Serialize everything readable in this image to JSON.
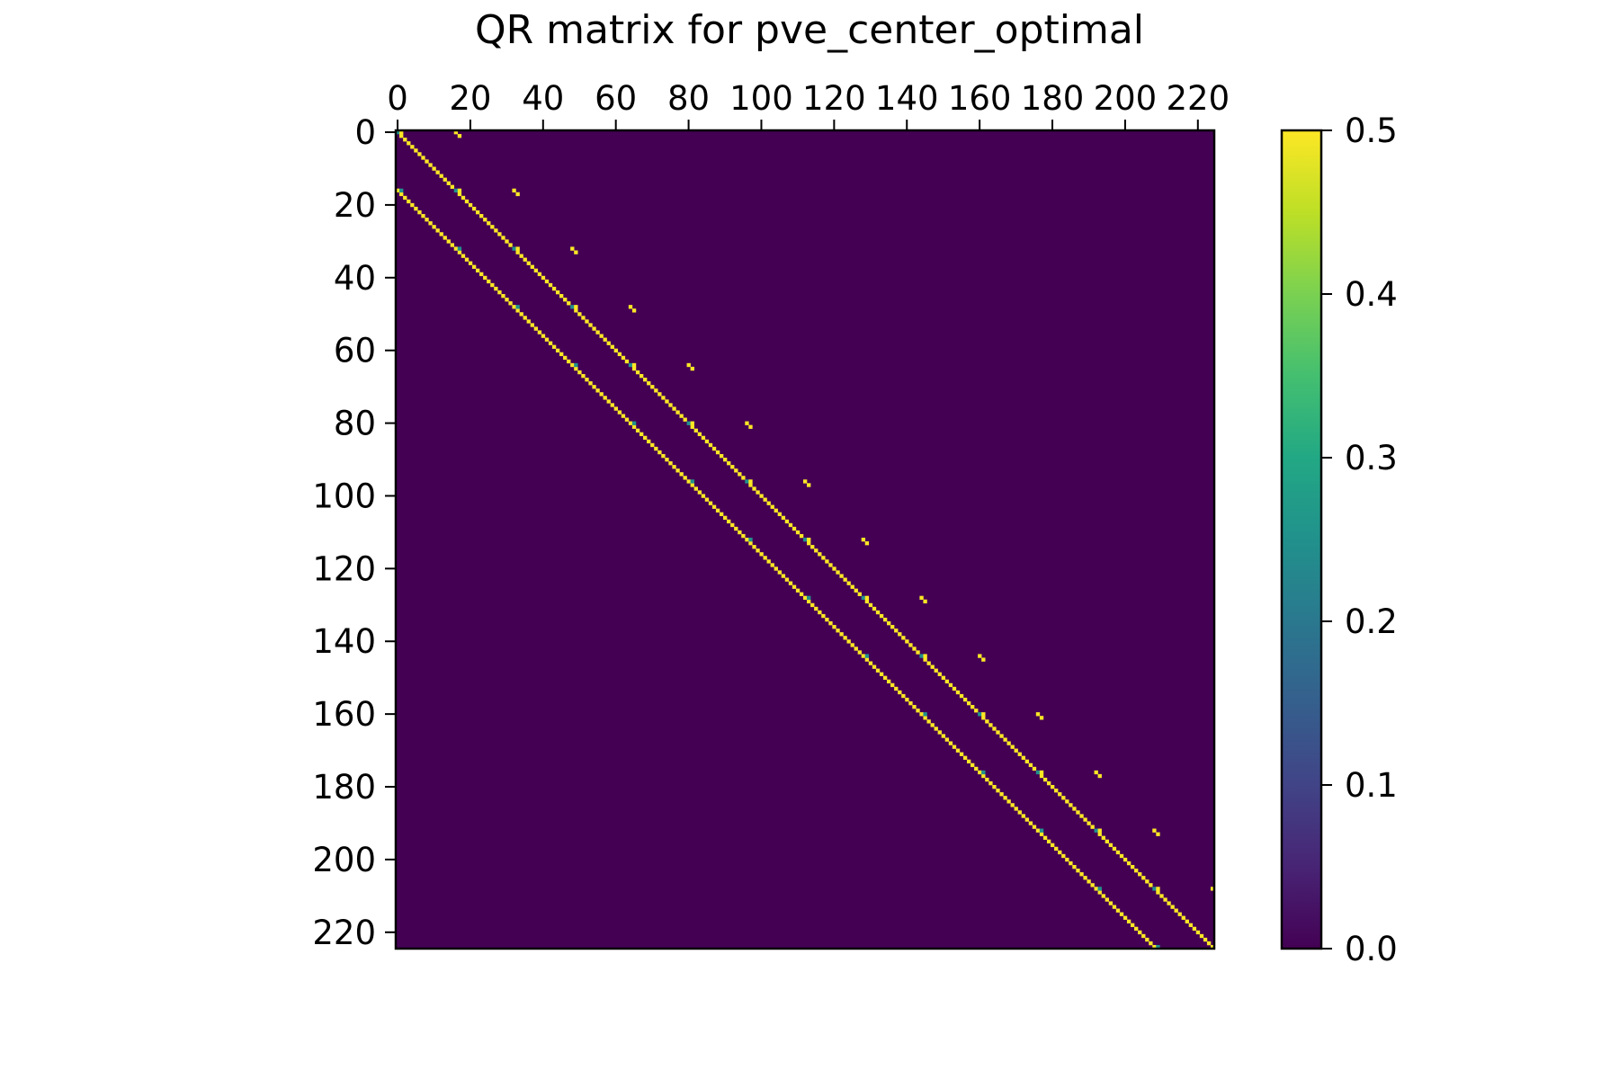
{
  "chart_data": {
    "type": "heatmap",
    "title": "QR matrix for pve_center_optimal",
    "xlabel": "",
    "ylabel": "",
    "size": 225,
    "xlim": [
      0,
      225
    ],
    "ylim": [
      225,
      0
    ],
    "x_axis_position": "top",
    "x_ticks": [
      "0",
      "20",
      "40",
      "60",
      "80",
      "100",
      "120",
      "140",
      "160",
      "180",
      "200",
      "220"
    ],
    "y_ticks": [
      "0",
      "20",
      "40",
      "60",
      "80",
      "100",
      "120",
      "140",
      "160",
      "180",
      "200",
      "220"
    ],
    "tick_values": [
      0,
      20,
      40,
      60,
      80,
      100,
      120,
      140,
      160,
      180,
      200,
      220
    ],
    "colormap": "viridis",
    "background_value": 0.0,
    "grid": false,
    "colorbar": {
      "vmin": 0.0,
      "vmax": 0.5,
      "ticks": [
        "0.0",
        "0.1",
        "0.2",
        "0.3",
        "0.4",
        "0.5"
      ],
      "tick_values": [
        0.0,
        0.1,
        0.2,
        0.3,
        0.4,
        0.5
      ],
      "placement": "right"
    },
    "structure": {
      "block_size": 16,
      "n_blocks": 14,
      "diagonals": [
        {
          "name": "",
          "row_offset": 0,
          "value": 0.5
        },
        {
          "name": "",
          "row_offset": 16,
          "value": 0.5
        }
      ],
      "block_corner_values": [
        0.25,
        0.5
      ],
      "upper_block_entries": {
        "col_offset": 16,
        "value": 0.5
      }
    }
  }
}
